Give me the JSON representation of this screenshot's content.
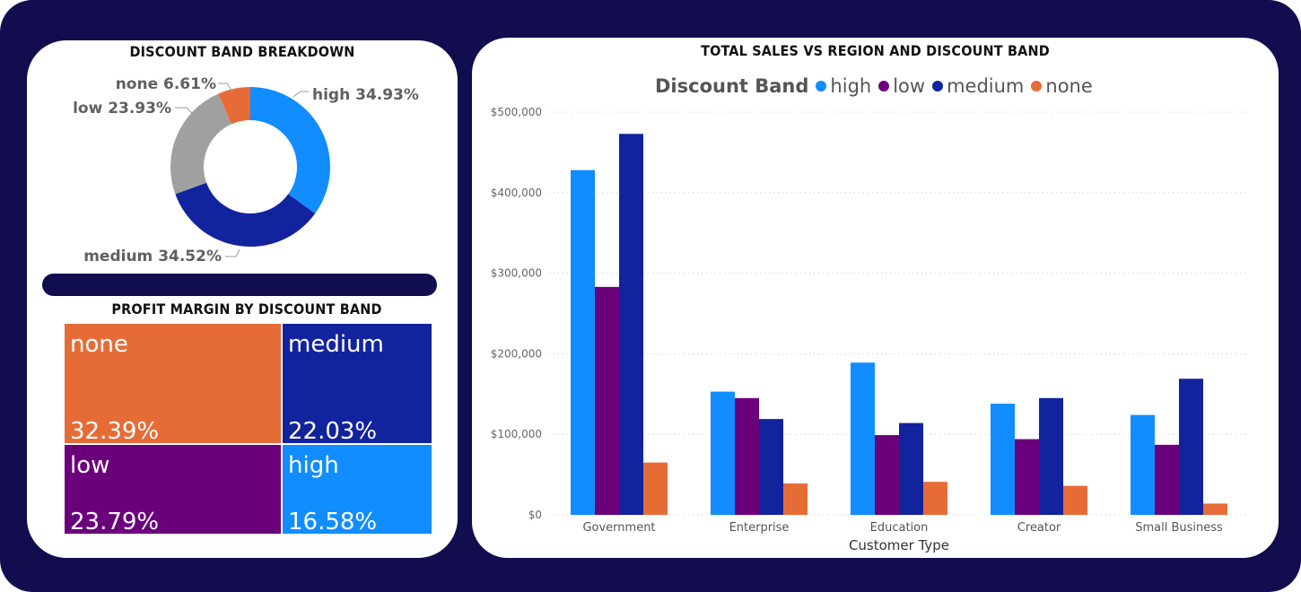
{
  "donut": {
    "title": "DISCOUNT BAND BREAKDOWN",
    "labels": [
      "high 34.93%",
      "medium 34.52%",
      "low 23.93%",
      "none 6.61%"
    ]
  },
  "treemap": {
    "title": "PROFIT MARGIN BY DISCOUNT BAND",
    "tiles": [
      {
        "label": "none",
        "value": "32.39%"
      },
      {
        "label": "medium",
        "value": "22.03%"
      },
      {
        "label": "low",
        "value": "23.79%"
      },
      {
        "label": "high",
        "value": "16.58%"
      }
    ]
  },
  "bar": {
    "title": "TOTAL SALES VS REGION AND DISCOUNT BAND",
    "legend_title": "Discount Band",
    "legend_items": [
      "high",
      "low",
      "medium",
      "none"
    ]
  },
  "chart_data": [
    {
      "type": "pie",
      "title": "DISCOUNT BAND BREAKDOWN",
      "categories": [
        "high",
        "medium",
        "low",
        "none"
      ],
      "values": [
        34.93,
        34.52,
        23.93,
        6.61
      ],
      "colors": [
        "#118dff",
        "#12239e",
        "#a0a0a0",
        "#e66c37"
      ],
      "donut": true
    },
    {
      "type": "heatmap",
      "title": "PROFIT MARGIN BY DISCOUNT BAND",
      "categories": [
        "none",
        "medium",
        "low",
        "high"
      ],
      "values": [
        32.39,
        22.03,
        23.79,
        16.58
      ],
      "colors": [
        "#e66c37",
        "#12239e",
        "#6b007b",
        "#118dff"
      ]
    },
    {
      "type": "bar",
      "title": "TOTAL SALES VS REGION AND DISCOUNT BAND",
      "xlabel": "Customer Type",
      "ylabel": "",
      "categories": [
        "Government",
        "Enterprise",
        "Education",
        "Creator",
        "Small Business"
      ],
      "series": [
        {
          "name": "high",
          "color": "#118dff",
          "values": [
            428000,
            153000,
            189000,
            138000,
            124000
          ]
        },
        {
          "name": "low",
          "color": "#6b007b",
          "values": [
            283000,
            145000,
            99000,
            94000,
            87000
          ]
        },
        {
          "name": "medium",
          "color": "#12239e",
          "values": [
            473000,
            119000,
            114000,
            145000,
            169000
          ]
        },
        {
          "name": "none",
          "color": "#e66c37",
          "values": [
            65000,
            39000,
            41000,
            36000,
            14000
          ]
        }
      ],
      "ylim": [
        0,
        500000
      ],
      "yticks": [
        0,
        100000,
        200000,
        300000,
        400000,
        500000
      ],
      "ytick_labels": [
        "$0",
        "$100,000",
        "$200,000",
        "$300,000",
        "$400,000",
        "$500,000"
      ],
      "grid": true,
      "legend": "top"
    }
  ]
}
